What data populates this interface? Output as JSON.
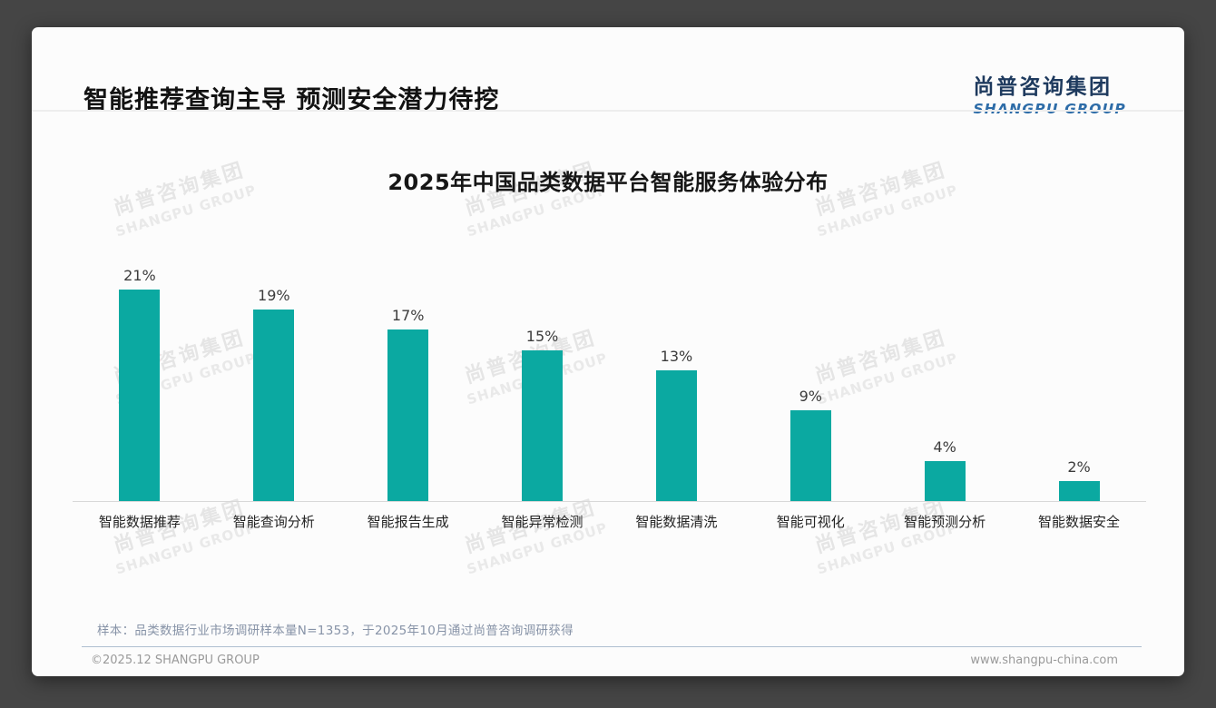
{
  "page": {
    "title": "智能推荐查询主导 预测安全潜力待挖",
    "logo": {
      "cn": "尚普咨询集团",
      "en": "SHANGPU GROUP"
    },
    "watermark": {
      "cn": "尚普咨询集团",
      "en": "SHANGPU GROUP"
    },
    "note": "样本：品类数据行业市场调研样本量N=1353，于2025年10月通过尚普咨询调研获得",
    "footer": {
      "left": "©2025.12 SHANGPU GROUP",
      "right": "www.shangpu-china.com"
    }
  },
  "chart_data": {
    "type": "bar",
    "title": "2025年中国品类数据平台智能服务体验分布",
    "categories": [
      "智能数据推荐",
      "智能查询分析",
      "智能报告生成",
      "智能异常检测",
      "智能数据清洗",
      "智能可视化",
      "智能预测分析",
      "智能数据安全"
    ],
    "values": [
      21,
      19,
      17,
      15,
      13,
      9,
      4,
      2
    ],
    "unit": "%",
    "value_label_position": "above bars",
    "bar_color": "#0ba9a1",
    "axis_line_color": "#d8d8d8",
    "ylim": [
      0,
      23
    ],
    "grid": false,
    "legend": "none"
  }
}
